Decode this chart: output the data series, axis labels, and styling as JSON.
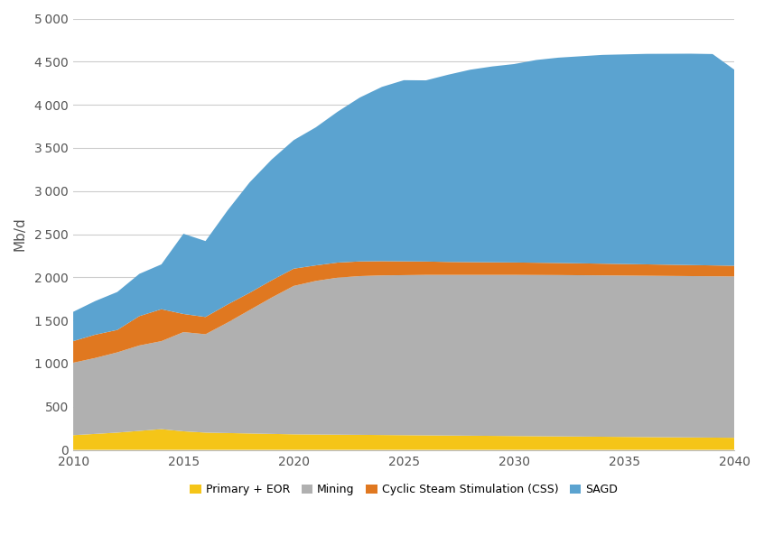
{
  "years": [
    2010,
    2011,
    2012,
    2013,
    2014,
    2015,
    2016,
    2017,
    2018,
    2019,
    2020,
    2021,
    2022,
    2023,
    2024,
    2025,
    2026,
    2027,
    2028,
    2029,
    2030,
    2031,
    2032,
    2033,
    2034,
    2035,
    2036,
    2037,
    2038,
    2039,
    2040
  ],
  "primary_eor": [
    170,
    185,
    200,
    220,
    240,
    215,
    200,
    195,
    190,
    185,
    180,
    178,
    176,
    174,
    172,
    170,
    168,
    166,
    164,
    162,
    160,
    158,
    156,
    154,
    152,
    150,
    148,
    146,
    144,
    142,
    140
  ],
  "mining": [
    840,
    880,
    930,
    990,
    1020,
    1150,
    1140,
    1280,
    1430,
    1580,
    1720,
    1780,
    1820,
    1840,
    1850,
    1855,
    1860,
    1862,
    1864,
    1866,
    1868,
    1869,
    1870,
    1870,
    1870,
    1870,
    1870,
    1870,
    1870,
    1870,
    1870
  ],
  "css": [
    250,
    270,
    260,
    340,
    370,
    210,
    200,
    210,
    200,
    200,
    200,
    180,
    175,
    170,
    165,
    160,
    155,
    150,
    148,
    146,
    144,
    142,
    140,
    138,
    136,
    134,
    132,
    130,
    128,
    126,
    124
  ],
  "sagd": [
    340,
    390,
    440,
    490,
    520,
    930,
    880,
    1090,
    1280,
    1400,
    1490,
    1600,
    1750,
    1900,
    2020,
    2100,
    2100,
    2170,
    2230,
    2270,
    2300,
    2350,
    2380,
    2400,
    2420,
    2430,
    2440,
    2445,
    2450,
    2450,
    2270
  ],
  "colors": {
    "primary_eor": "#F5C518",
    "mining": "#B0B0B0",
    "css": "#E07820",
    "sagd": "#5BA3D0"
  },
  "legend_labels": [
    "Primary + EOR",
    "Mining",
    "Cyclic Steam Stimulation (CSS)",
    "SAGD"
  ],
  "ylabel": "Mb/d",
  "ylim": [
    0,
    5000
  ],
  "yticks": [
    0,
    500,
    1000,
    1500,
    2000,
    2500,
    3000,
    3500,
    4000,
    4500,
    5000
  ],
  "xlim": [
    2010,
    2040
  ],
  "xticks": [
    2010,
    2015,
    2020,
    2025,
    2030,
    2035,
    2040
  ],
  "bg_color": "#FFFFFF",
  "grid_color": "#CCCCCC"
}
